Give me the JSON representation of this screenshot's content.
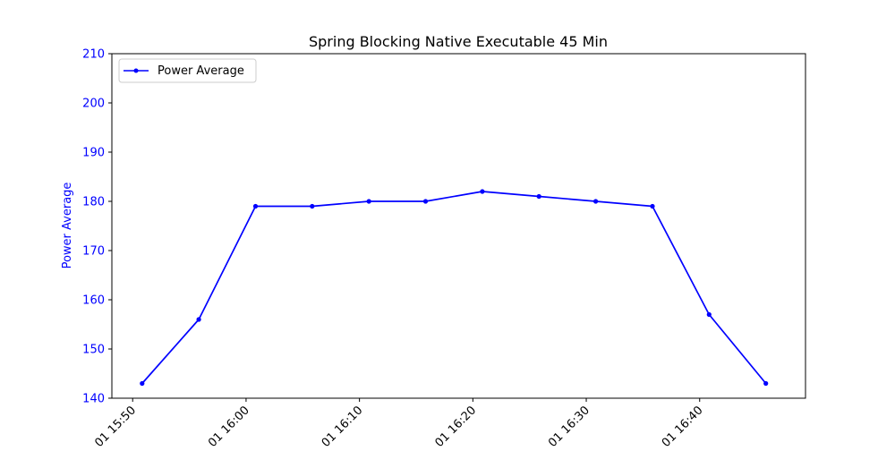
{
  "chart_data": {
    "type": "line",
    "title": "Spring Blocking Native Executable 45 Min",
    "xlabel": "",
    "ylabel": "Power Average",
    "ylim": [
      140,
      210
    ],
    "yticks": [
      "140",
      "150",
      "160",
      "170",
      "180",
      "190",
      "200",
      "210"
    ],
    "xlim": [
      "2024-01-01 15:48:10",
      "2024-01-01 16:49:20"
    ],
    "xticks": [
      "01 15:50",
      "01 16:00",
      "01 16:10",
      "01 16:20",
      "01 16:30",
      "01 16:40"
    ],
    "grid": false,
    "legend": {
      "position": "top-left",
      "entries": [
        "Power Average"
      ]
    },
    "series": [
      {
        "name": "Power Average",
        "color": "#0000ff",
        "marker": "dot",
        "x": [
          "15:50:50",
          "15:55:50",
          "16:00:50",
          "16:05:50",
          "16:10:50",
          "16:15:50",
          "16:20:50",
          "16:25:50",
          "16:30:50",
          "16:35:50",
          "16:40:50",
          "16:45:50"
        ],
        "values": [
          143,
          156,
          179,
          179,
          180,
          180,
          182,
          181,
          180,
          179,
          157,
          143
        ]
      }
    ]
  }
}
